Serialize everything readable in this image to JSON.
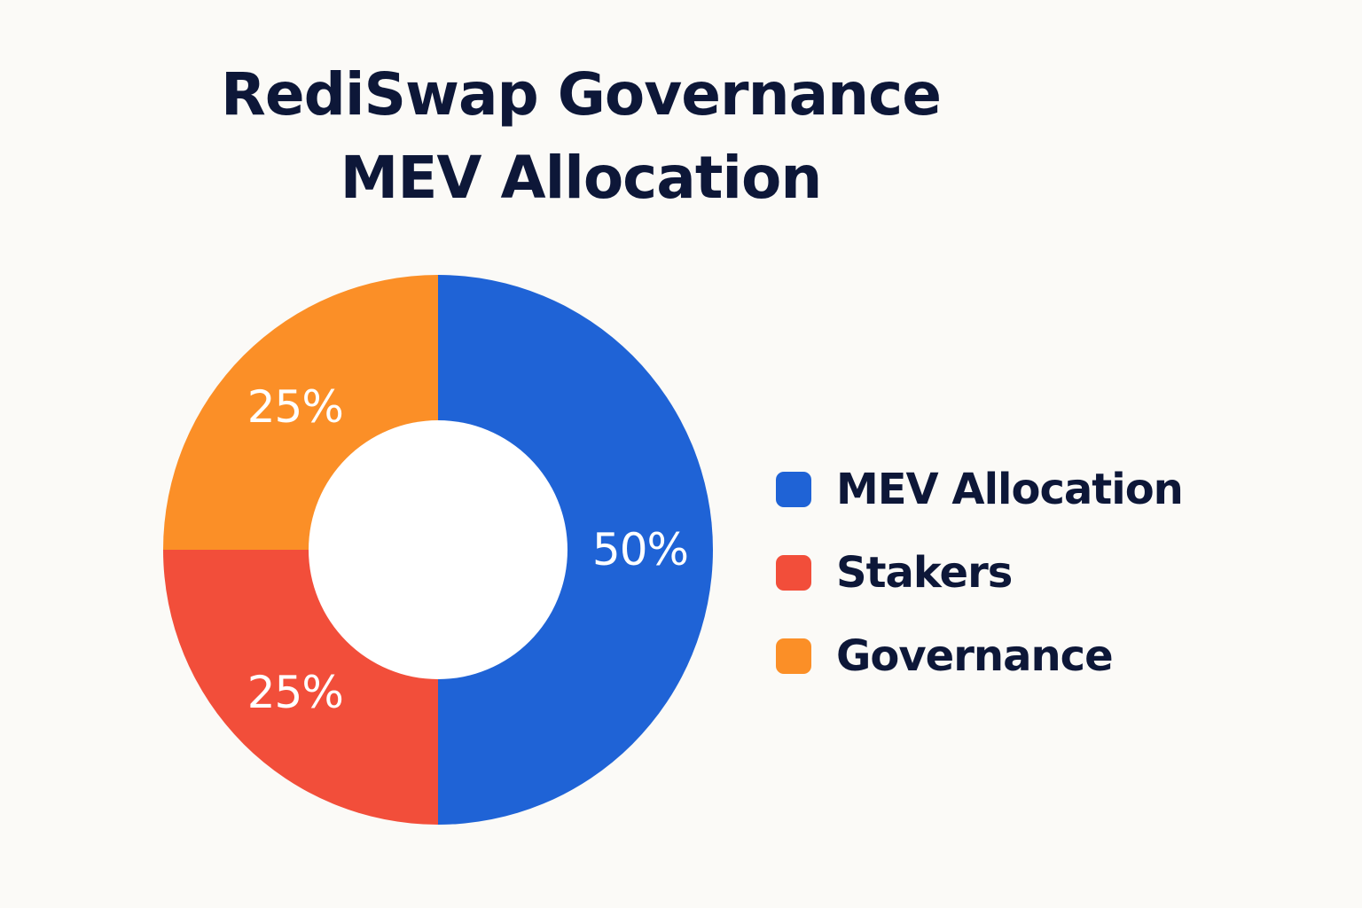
{
  "chart_data": {
    "type": "pie",
    "style": "donut",
    "title_lines": [
      "RediSwap Governance",
      "MEV Allocation"
    ],
    "slices": [
      {
        "label": "MEV Allocation",
        "value": 50,
        "data_label": "50%",
        "color": "#1f63d6"
      },
      {
        "label": "Stakers",
        "value": 25,
        "data_label": "25%",
        "color": "#f24e3a"
      },
      {
        "label": "Governance",
        "value": 25,
        "data_label": "25%",
        "color": "#fb8f27"
      }
    ],
    "legend_position": "right",
    "center_color": "#ffffff",
    "label_color": "#ffffff"
  }
}
